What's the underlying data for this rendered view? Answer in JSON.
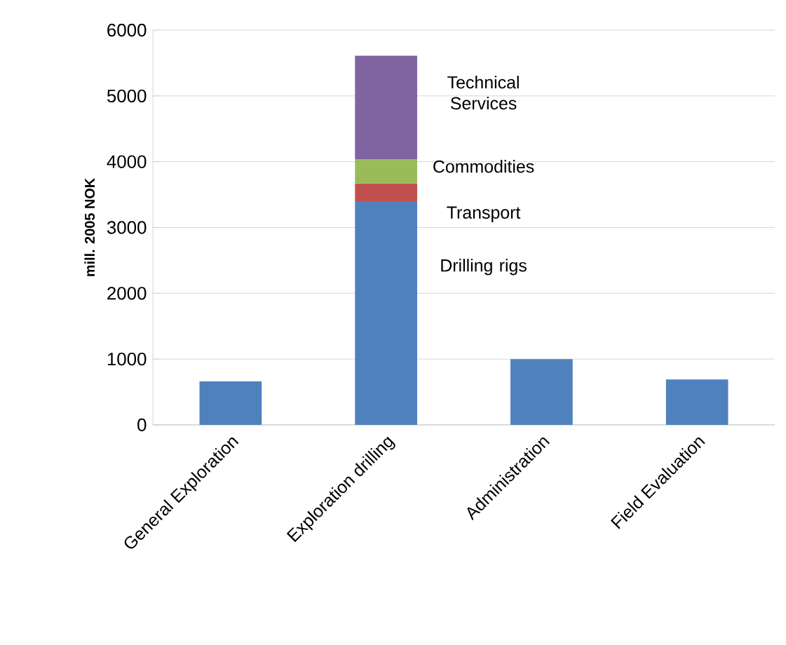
{
  "chart_data": {
    "type": "bar",
    "stacked": true,
    "ylabel": "mill. 2005 NOK",
    "categories": [
      "General Exploration",
      "Exploration drilling",
      "Administration",
      "Field Evaluation"
    ],
    "series": [
      {
        "color": "#4f81bd",
        "values": [
          660,
          null,
          1000,
          690
        ]
      },
      {
        "name": "Drilling rigs",
        "color": "#4f81bd",
        "values": [
          null,
          3400,
          null,
          null
        ]
      },
      {
        "name": "Transport",
        "color": "#c0504d",
        "values": [
          null,
          270,
          null,
          null
        ]
      },
      {
        "name": "Commodities",
        "color": "#9bbb59",
        "values": [
          null,
          370,
          null,
          null
        ]
      },
      {
        "name": "Technical Services",
        "color": "#8064a2",
        "values": [
          null,
          1570,
          null,
          null
        ]
      }
    ],
    "ylim": [
      0,
      6000
    ],
    "yticks": [
      0,
      1000,
      2000,
      3000,
      4000,
      5000,
      6000
    ],
    "grid": "y"
  }
}
